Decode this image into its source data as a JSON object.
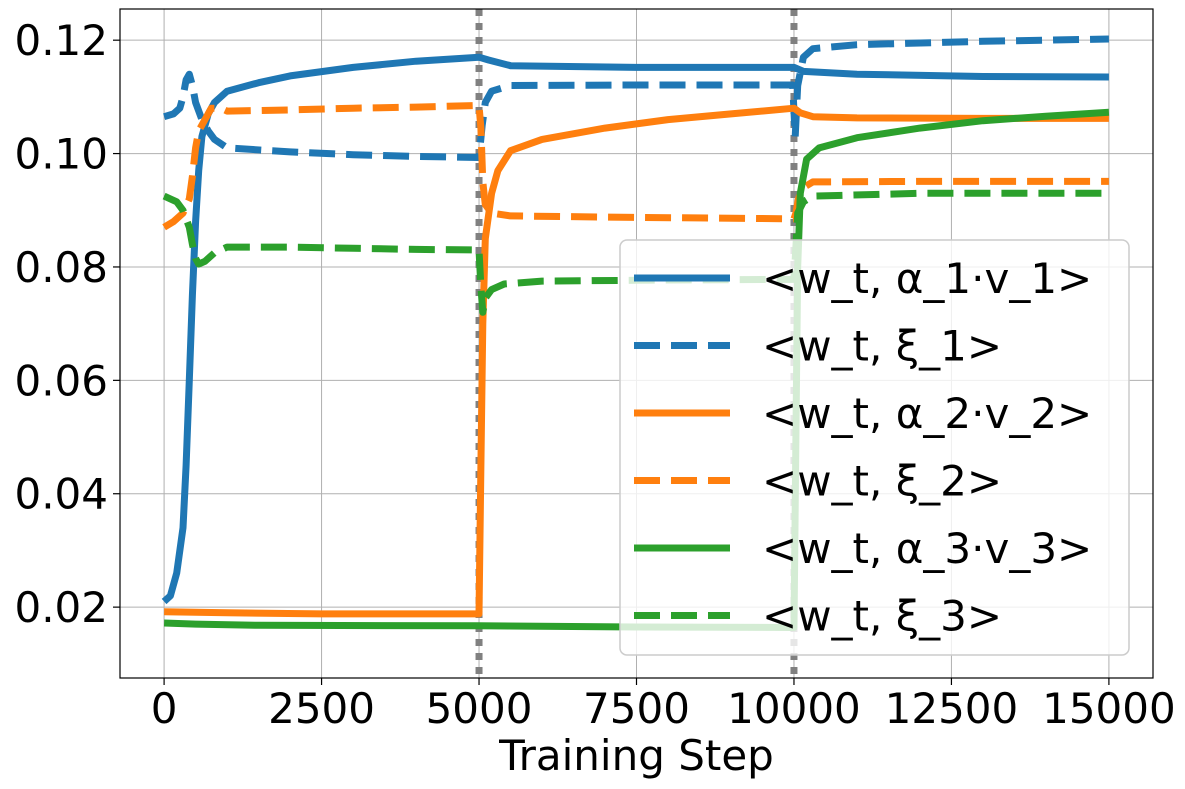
{
  "chart_data": {
    "type": "line",
    "title": "",
    "xlabel": "Training Step",
    "ylabel": "",
    "xlim": [
      -700,
      15700
    ],
    "ylim": [
      0.0075,
      0.1255
    ],
    "xticks": [
      0,
      2500,
      5000,
      7500,
      10000,
      12500,
      15000
    ],
    "xtick_labels": [
      "0",
      "2500",
      "5000",
      "7500",
      "10000",
      "12500",
      "15000"
    ],
    "yticks": [
      0.02,
      0.04,
      0.06,
      0.08,
      0.1,
      0.12
    ],
    "ytick_labels": [
      "0.02",
      "0.04",
      "0.06",
      "0.08",
      "0.10",
      "0.12"
    ],
    "grid": true,
    "legend_position": "bottom-right",
    "vlines": [
      {
        "x": 5000,
        "color": "#808080",
        "style": "dotted"
      },
      {
        "x": 10000,
        "color": "#808080",
        "style": "dotted"
      }
    ],
    "series": [
      {
        "name": "<w_t, α_1·v_1>",
        "color": "#1f77b4",
        "style": "solid",
        "points": [
          [
            0,
            0.021
          ],
          [
            100,
            0.022
          ],
          [
            200,
            0.026
          ],
          [
            300,
            0.034
          ],
          [
            350,
            0.045
          ],
          [
            400,
            0.06
          ],
          [
            450,
            0.075
          ],
          [
            500,
            0.088
          ],
          [
            550,
            0.097
          ],
          [
            600,
            0.103
          ],
          [
            700,
            0.107
          ],
          [
            800,
            0.109
          ],
          [
            1000,
            0.111
          ],
          [
            1500,
            0.1125
          ],
          [
            2000,
            0.1137
          ],
          [
            3000,
            0.1152
          ],
          [
            4000,
            0.1163
          ],
          [
            5000,
            0.117
          ],
          [
            5150,
            0.1165
          ],
          [
            5500,
            0.1155
          ],
          [
            7500,
            0.1152
          ],
          [
            10000,
            0.1152
          ],
          [
            10150,
            0.1145
          ],
          [
            11000,
            0.114
          ],
          [
            13000,
            0.1136
          ],
          [
            15000,
            0.1135
          ]
        ]
      },
      {
        "name": "<w_t, ξ_1>",
        "color": "#1f77b4",
        "style": "dashed",
        "points": [
          [
            0,
            0.1065
          ],
          [
            150,
            0.107
          ],
          [
            250,
            0.108
          ],
          [
            300,
            0.11
          ],
          [
            350,
            0.113
          ],
          [
            400,
            0.114
          ],
          [
            450,
            0.112
          ],
          [
            500,
            0.109
          ],
          [
            600,
            0.106
          ],
          [
            700,
            0.104
          ],
          [
            800,
            0.1025
          ],
          [
            1000,
            0.101
          ],
          [
            2000,
            0.1003
          ],
          [
            3000,
            0.0998
          ],
          [
            4000,
            0.0995
          ],
          [
            5000,
            0.0993
          ],
          [
            5050,
            0.105
          ],
          [
            5100,
            0.109
          ],
          [
            5200,
            0.111
          ],
          [
            5500,
            0.112
          ],
          [
            7500,
            0.1121
          ],
          [
            9980,
            0.1121
          ],
          [
            10020,
            0.103
          ],
          [
            10060,
            0.112
          ],
          [
            10150,
            0.117
          ],
          [
            10300,
            0.1185
          ],
          [
            11000,
            0.1192
          ],
          [
            13000,
            0.1198
          ],
          [
            15000,
            0.1202
          ]
        ]
      },
      {
        "name": "<w_t, α_2·v_2>",
        "color": "#ff7f0e",
        "style": "solid",
        "points": [
          [
            0,
            0.0192
          ],
          [
            1000,
            0.019
          ],
          [
            2500,
            0.0188
          ],
          [
            5000,
            0.0188
          ],
          [
            5030,
            0.045
          ],
          [
            5060,
            0.07
          ],
          [
            5100,
            0.085
          ],
          [
            5200,
            0.093
          ],
          [
            5300,
            0.097
          ],
          [
            5500,
            0.1005
          ],
          [
            6000,
            0.1025
          ],
          [
            7000,
            0.1045
          ],
          [
            8000,
            0.106
          ],
          [
            9000,
            0.107
          ],
          [
            10000,
            0.108
          ],
          [
            10100,
            0.1072
          ],
          [
            10300,
            0.1065
          ],
          [
            11000,
            0.1063
          ],
          [
            13000,
            0.1062
          ],
          [
            15000,
            0.1062
          ]
        ]
      },
      {
        "name": "<w_t, ξ_2>",
        "color": "#ff7f0e",
        "style": "dashed",
        "points": [
          [
            0,
            0.087
          ],
          [
            150,
            0.088
          ],
          [
            300,
            0.0895
          ],
          [
            400,
            0.092
          ],
          [
            450,
            0.096
          ],
          [
            500,
            0.101
          ],
          [
            550,
            0.104
          ],
          [
            650,
            0.106
          ],
          [
            750,
            0.108
          ],
          [
            900,
            0.108
          ],
          [
            1000,
            0.1075
          ],
          [
            2000,
            0.1077
          ],
          [
            3000,
            0.108
          ],
          [
            4000,
            0.1082
          ],
          [
            5000,
            0.1085
          ],
          [
            5030,
            0.1045
          ],
          [
            5060,
            0.095
          ],
          [
            5100,
            0.091
          ],
          [
            5200,
            0.0895
          ],
          [
            5500,
            0.089
          ],
          [
            7000,
            0.0888
          ],
          [
            10000,
            0.0885
          ],
          [
            10030,
            0.0895
          ],
          [
            10070,
            0.092
          ],
          [
            10150,
            0.094
          ],
          [
            10300,
            0.095
          ],
          [
            12000,
            0.0951
          ],
          [
            15000,
            0.0951
          ]
        ]
      },
      {
        "name": "<w_t, α_3·v_3>",
        "color": "#2ca02c",
        "style": "solid",
        "points": [
          [
            0,
            0.0172
          ],
          [
            500,
            0.017
          ],
          [
            1500,
            0.0168
          ],
          [
            5000,
            0.0167
          ],
          [
            7500,
            0.0165
          ],
          [
            10000,
            0.0164
          ],
          [
            10030,
            0.05
          ],
          [
            10060,
            0.08
          ],
          [
            10100,
            0.093
          ],
          [
            10200,
            0.099
          ],
          [
            10400,
            0.101
          ],
          [
            11000,
            0.1028
          ],
          [
            12000,
            0.1045
          ],
          [
            13000,
            0.1058
          ],
          [
            14000,
            0.1066
          ],
          [
            15000,
            0.1073
          ]
        ]
      },
      {
        "name": "<w_t, ξ_3>",
        "color": "#2ca02c",
        "style": "dashed",
        "points": [
          [
            0,
            0.0925
          ],
          [
            200,
            0.0915
          ],
          [
            300,
            0.09
          ],
          [
            400,
            0.087
          ],
          [
            450,
            0.084
          ],
          [
            500,
            0.0815
          ],
          [
            550,
            0.0805
          ],
          [
            650,
            0.081
          ],
          [
            800,
            0.0825
          ],
          [
            1000,
            0.0835
          ],
          [
            2000,
            0.0835
          ],
          [
            3000,
            0.0833
          ],
          [
            4000,
            0.0831
          ],
          [
            5000,
            0.083
          ],
          [
            5030,
            0.0765
          ],
          [
            5060,
            0.072
          ],
          [
            5100,
            0.0745
          ],
          [
            5200,
            0.076
          ],
          [
            5400,
            0.077
          ],
          [
            6000,
            0.0775
          ],
          [
            8000,
            0.0777
          ],
          [
            10000,
            0.0778
          ],
          [
            10030,
            0.0835
          ],
          [
            10060,
            0.0895
          ],
          [
            10150,
            0.0915
          ],
          [
            10300,
            0.0925
          ],
          [
            12000,
            0.093
          ],
          [
            15000,
            0.093
          ]
        ]
      }
    ]
  }
}
